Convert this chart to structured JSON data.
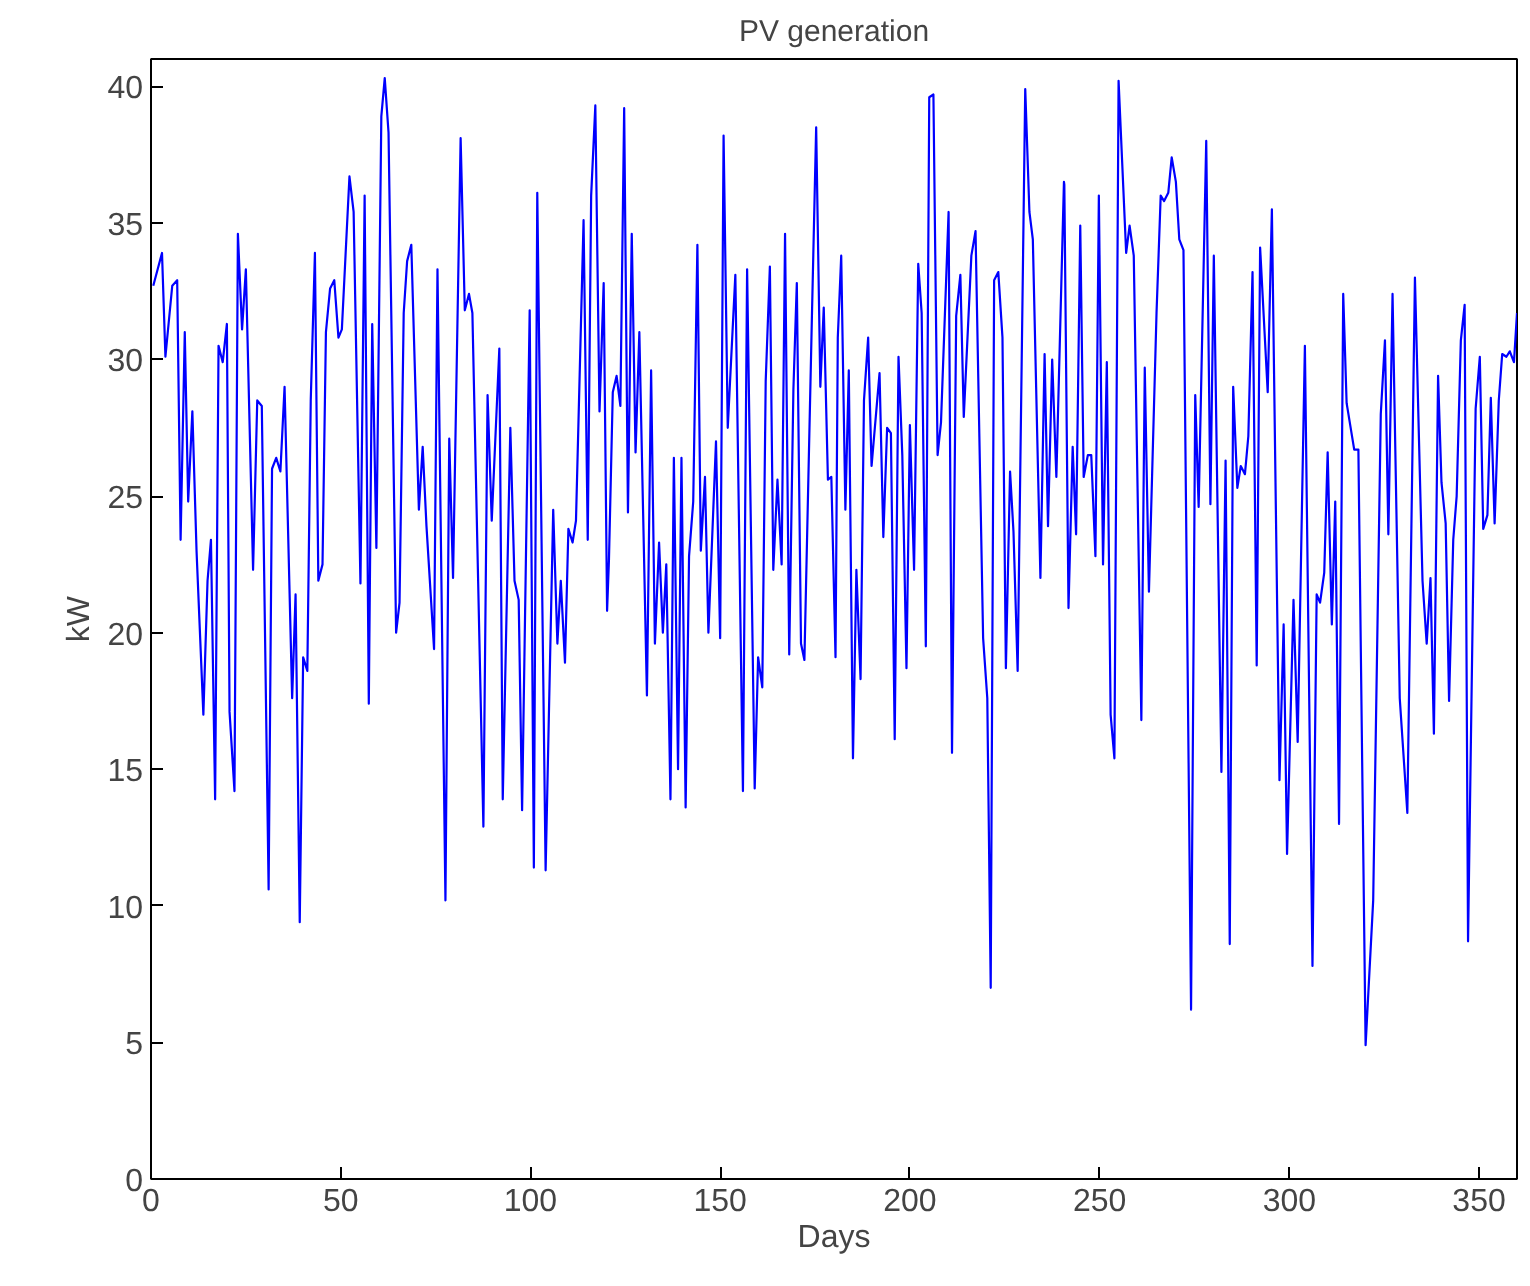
{
  "chart_data": {
    "type": "line",
    "title": "PV generation",
    "xlabel": "Days",
    "ylabel": "kW",
    "xlim": [
      0,
      360
    ],
    "ylim": [
      0,
      41
    ],
    "xticks": [
      0,
      50,
      100,
      150,
      200,
      250,
      300,
      350
    ],
    "yticks": [
      0,
      5,
      10,
      15,
      20,
      25,
      30,
      35,
      40
    ],
    "grid": false,
    "marker": "none",
    "line_style": "solid",
    "series": [
      {
        "color": "#0000ff",
        "x": [
          0.6,
          2.9,
          3.8,
          5.6,
          6.9,
          7.8,
          8.9,
          9.8,
          10.9,
          12,
          13.8,
          14.9,
          15.8,
          16.9,
          17.8,
          18.9,
          20,
          20.7,
          22,
          22.9,
          24,
          25,
          26.9,
          28,
          29.2,
          31,
          31.9,
          33,
          34.1,
          35.2,
          37.2,
          38.1,
          39.2,
          40.1,
          41.2,
          42.1,
          43.2,
          44.1,
          45.2,
          46.1,
          47.2,
          48.3,
          49.4,
          50.3,
          52.3,
          53.4,
          55.2,
          56.3,
          57.4,
          58.3,
          59.4,
          60.7,
          61.6,
          62.6,
          64.6,
          65.5,
          66.6,
          67.5,
          68.6,
          70.6,
          71.6,
          72.6,
          74.6,
          75.5,
          77.6,
          78.6,
          79.6,
          81.6,
          82.7,
          83.8,
          84.7,
          87.6,
          88.7,
          89.8,
          91.8,
          92.7,
          94.7,
          95.8,
          96.9,
          97.8,
          99.8,
          100.9,
          101.8,
          104.0,
          106.0,
          107.1,
          108.0,
          109.1,
          110.0,
          111.1,
          112.0,
          114.0,
          115.1,
          116.0,
          117.1,
          118.2,
          119.3,
          120.2,
          120.7,
          121.7,
          122.7,
          123.7,
          124.7,
          125.7,
          126.7,
          127.7,
          128.7,
          130.7,
          131.8,
          132.8,
          133.9,
          134.9,
          135.8,
          136.9,
          137.8,
          138.9,
          139.8,
          140.9,
          141.8,
          142.9,
          144.0,
          144.9,
          146.0,
          146.9,
          148.9,
          150.0,
          150.9,
          152.0,
          154.0,
          156.0,
          157.1,
          159.1,
          160.0,
          161.1,
          162.0,
          163.1,
          164.0,
          165.1,
          166.2,
          167.1,
          168.2,
          169.3,
          170.2,
          171.3,
          172.2,
          174.2,
          175.3,
          176.4,
          177.3,
          178.4,
          179.3,
          180.4,
          181.0,
          181.9,
          183.0,
          183.9,
          185.0,
          185.9,
          187.0,
          187.9,
          189.0,
          189.9,
          192.0,
          193.0,
          194.0,
          195.0,
          196.0,
          197.0,
          198.0,
          199.1,
          200.0,
          201.1,
          202.2,
          203.1,
          204.2,
          205.1,
          206.2,
          207.3,
          208.2,
          210.2,
          211.1,
          212.2,
          213.3,
          214.2,
          216.2,
          217.3,
          219.3,
          220.4,
          221.3,
          222.2,
          223.3,
          224.4,
          225.3,
          226.4,
          227.3,
          228.4,
          230.4,
          231.5,
          232.4,
          234.4,
          235.5,
          236.4,
          237.5,
          238.6,
          240.6,
          240.7,
          241.8,
          242.9,
          243.8,
          244.9,
          245.8,
          246.9,
          247.8,
          248.9,
          249.8,
          250.9,
          251.9,
          252.9,
          253.9,
          255.0,
          257.0,
          257.9,
          259.0,
          261.0,
          261.9,
          263.0,
          265.0,
          266.1,
          267.0,
          268.1,
          269.0,
          270.1,
          271.0,
          272.1,
          274.1,
          275.2,
          276.1,
          278.1,
          279.2,
          280.1,
          282.1,
          283.2,
          284.3,
          285.2,
          286.3,
          287.2,
          288.3,
          289.2,
          290.3,
          291.4,
          292.3,
          294.3,
          295.4,
          297.4,
          298.5,
          299.4,
          301.1,
          302.2,
          304.1,
          306.1,
          307.2,
          308.1,
          309.2,
          310.1,
          311.2,
          312.1,
          313.1,
          314.2,
          315.1,
          317.1,
          318.2,
          320.1,
          322.1,
          324.1,
          325.2,
          326.1,
          327.2,
          329.1,
          331.1,
          333.1,
          335.1,
          336.2,
          337.2,
          338.1,
          339.2,
          340.1,
          341.2,
          342.1,
          343.2,
          344.1,
          345.2,
          346.2,
          347.1,
          349.1,
          350.2,
          351.1,
          352.2,
          353.1,
          354.1,
          355.2,
          356.1,
          357.2,
          358.1,
          359.2,
          360.0
        ],
        "values": [
          32.7,
          33.9,
          30.1,
          32.7,
          32.9,
          23.4,
          31.0,
          24.8,
          28.1,
          23,
          17.0,
          21.9,
          23.4,
          13.9,
          30.5,
          29.9,
          31.3,
          17.1,
          14.2,
          34.6,
          31.1,
          33.3,
          22.3,
          28.5,
          28.3,
          10.6,
          26.0,
          26.4,
          25.9,
          29.0,
          17.6,
          21.4,
          9.4,
          19.1,
          18.6,
          28.5,
          33.9,
          21.9,
          22.5,
          31.0,
          32.6,
          32.9,
          30.8,
          31.1,
          36.7,
          35.4,
          21.8,
          36.0,
          17.4,
          31.3,
          23.1,
          38.9,
          40.3,
          38.3,
          20.0,
          21.1,
          31.7,
          33.6,
          34.2,
          24.5,
          26.8,
          23.9,
          19.4,
          33.3,
          10.2,
          27.1,
          22.0,
          38.1,
          31.8,
          32.4,
          31.7,
          12.9,
          28.7,
          24.1,
          30.4,
          13.9,
          27.5,
          21.9,
          21.2,
          13.5,
          31.8,
          11.4,
          36.1,
          11.3,
          24.5,
          19.6,
          21.9,
          18.9,
          23.8,
          23.3,
          24.1,
          35.1,
          23.4,
          36.0,
          39.3,
          28.1,
          32.8,
          20.8,
          22.7,
          28.8,
          29.4,
          28.3,
          39.2,
          24.4,
          34.6,
          26.6,
          31.0,
          17.7,
          29.6,
          19.6,
          23.3,
          20.0,
          22.5,
          13.9,
          26.4,
          15.0,
          26.4,
          13.6,
          22.8,
          24.8,
          34.2,
          23.0,
          25.7,
          20.0,
          27.0,
          19.8,
          38.2,
          27.5,
          33.1,
          14.2,
          33.3,
          14.3,
          19.1,
          18.0,
          29.2,
          33.4,
          22.3,
          25.6,
          22.5,
          34.6,
          19.2,
          28.9,
          32.8,
          19.6,
          19.0,
          31.7,
          38.5,
          29.0,
          31.9,
          25.6,
          25.7,
          19.1,
          30.8,
          33.8,
          24.5,
          29.6,
          15.4,
          22.3,
          18.3,
          28.5,
          30.8,
          26.1,
          29.5,
          23.5,
          27.5,
          27.3,
          16.1,
          30.1,
          26.5,
          18.7,
          27.6,
          22.3,
          33.5,
          31.7,
          19.5,
          39.6,
          39.7,
          26.5,
          27.7,
          35.4,
          15.6,
          31.6,
          33.1,
          27.9,
          33.8,
          34.7,
          19.8,
          17.6,
          7.0,
          32.9,
          33.2,
          30.8,
          18.7,
          25.9,
          23.7,
          18.6,
          39.9,
          35.4,
          34.4,
          22.0,
          30.2,
          23.9,
          30.0,
          25.7,
          36.5,
          36.4,
          20.9,
          26.8,
          23.6,
          34.9,
          25.7,
          26.5,
          26.5,
          22.8,
          36.0,
          22.5,
          29.9,
          17.0,
          15.4,
          40.2,
          33.9,
          34.9,
          33.8,
          16.8,
          29.7,
          21.5,
          31.7,
          36.0,
          35.8,
          36.1,
          37.4,
          36.5,
          34.4,
          34.0,
          6.2,
          28.7,
          24.6,
          38.0,
          24.7,
          33.8,
          14.9,
          26.3,
          8.6,
          29.0,
          25.3,
          26.1,
          25.8,
          27.2,
          33.2,
          18.8,
          34.1,
          28.8,
          35.5,
          14.6,
          20.3,
          11.9,
          21.2,
          16.0,
          30.5,
          7.8,
          21.4,
          21.1,
          22.2,
          26.6,
          20.3,
          24.8,
          13.0,
          32.4,
          28.4,
          26.7,
          26.7,
          4.9,
          10.2,
          28.0,
          30.7,
          23.6,
          32.4,
          17.6,
          13.4,
          33.0,
          21.9,
          19.6,
          22.0,
          16.3,
          29.4,
          25.5,
          24.0,
          17.5,
          23.4,
          25.0,
          30.7,
          32.0,
          8.7,
          28.2,
          30.1,
          23.8,
          24.3,
          28.6,
          24.0,
          28.5,
          30.2,
          30.1,
          30.3,
          29.9,
          31.7
        ]
      }
    ]
  }
}
